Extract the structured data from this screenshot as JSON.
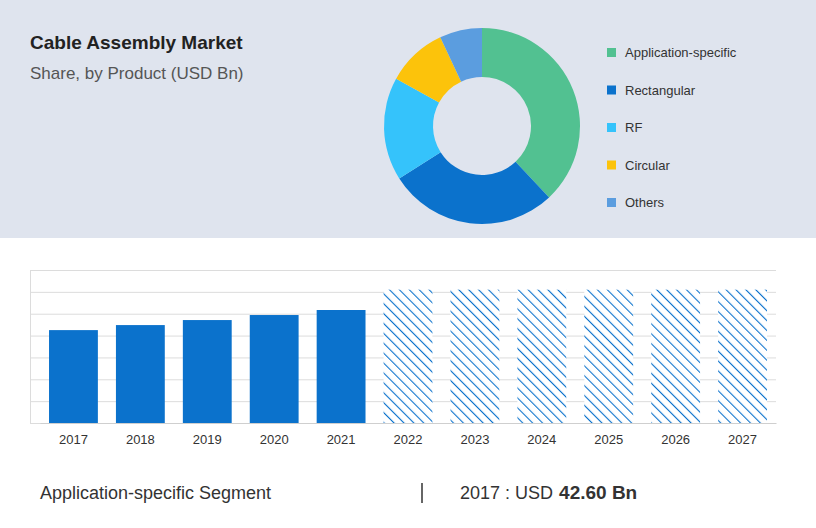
{
  "chart_data": [
    {
      "type": "pie",
      "title": "Cable Assembly Market",
      "subtitle": "Share, by Product (USD Bn)",
      "categories": [
        "Application-specific",
        "Rectangular",
        "RF",
        "Circular",
        "Others"
      ],
      "values": [
        38,
        28,
        17,
        10,
        7
      ],
      "colors": [
        "#52c191",
        "#0b72cc",
        "#35c3fb",
        "#fcc30b",
        "#5b9ddf"
      ],
      "legend": "right"
    },
    {
      "type": "bar",
      "categories": [
        "2017",
        "2018",
        "2019",
        "2020",
        "2021",
        "2022",
        "2023",
        "2024",
        "2025",
        "2026",
        "2027"
      ],
      "series": [
        {
          "color": "#0b72cc",
          "values": [
            4.25,
            4.48,
            4.71,
            4.94,
            5.17,
            null,
            null,
            null,
            null,
            null,
            null
          ]
        },
        {
          "color": "#0b72cc",
          "marker": "hatch",
          "values": [
            null,
            null,
            null,
            null,
            null,
            6.1,
            6.1,
            6.1,
            6.1,
            6.1,
            6.1
          ]
        }
      ],
      "ylim": [
        0,
        7
      ],
      "yticks": [
        0,
        1,
        2,
        3,
        4,
        5,
        6,
        7
      ],
      "grid": true,
      "tick_labels": "x"
    }
  ],
  "footer": {
    "segment": "Application-specific Segment",
    "year_label": "2017 : USD",
    "value_label": "42.60 Bn"
  }
}
